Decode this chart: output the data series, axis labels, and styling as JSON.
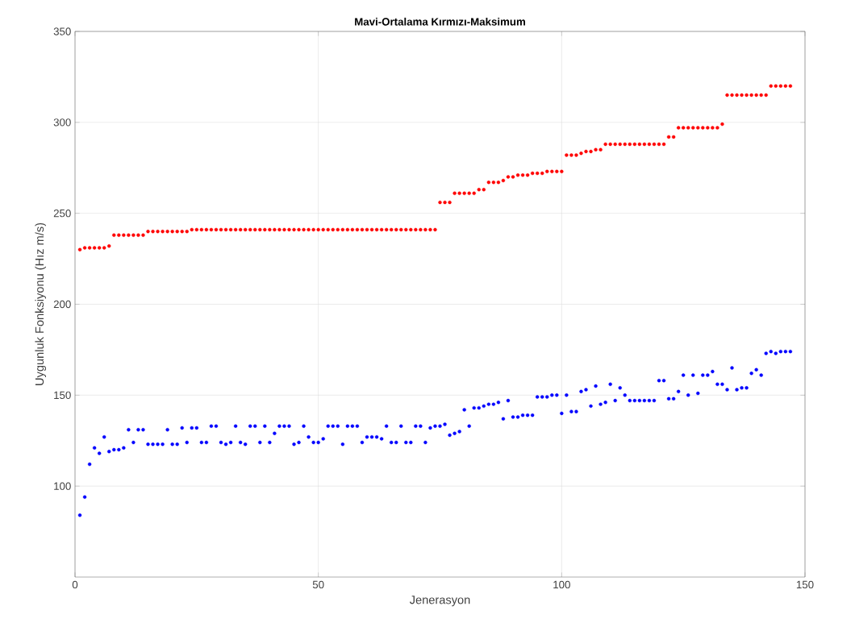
{
  "chart_data": {
    "type": "scatter",
    "title": "Mavi-Ortalama  Kırmızı-Maksimum",
    "xlabel": "Jenerasyon",
    "ylabel": "Uygunluk Fonksiyonu (Hız m/s)",
    "x": [
      1,
      2,
      3,
      4,
      5,
      6,
      7,
      8,
      9,
      10,
      11,
      12,
      13,
      14,
      15,
      16,
      17,
      18,
      19,
      20,
      21,
      22,
      23,
      24,
      25,
      26,
      27,
      28,
      29,
      30,
      31,
      32,
      33,
      34,
      35,
      36,
      37,
      38,
      39,
      40,
      41,
      42,
      43,
      44,
      45,
      46,
      47,
      48,
      49,
      50,
      51,
      52,
      53,
      54,
      55,
      56,
      57,
      58,
      59,
      60,
      61,
      62,
      63,
      64,
      65,
      66,
      67,
      68,
      69,
      70,
      71,
      72,
      73,
      74,
      75,
      76,
      77,
      78,
      79,
      80,
      81,
      82,
      83,
      84,
      85,
      86,
      87,
      88,
      89,
      90,
      91,
      92,
      93,
      94,
      95,
      96,
      97,
      98,
      99,
      100,
      101,
      102,
      103,
      104,
      105,
      106,
      107,
      108,
      109,
      110,
      111,
      112,
      113,
      114,
      115,
      116,
      117,
      118,
      119,
      120,
      121,
      122,
      123,
      124,
      125,
      126,
      127,
      128,
      129,
      130,
      131,
      132,
      133,
      134,
      135,
      136,
      137,
      138,
      139,
      140,
      141,
      142,
      143,
      144,
      145,
      146,
      147
    ],
    "series": [
      {
        "color": "#0000ff",
        "values": [
          84,
          94,
          112,
          121,
          118,
          127,
          119,
          120,
          120,
          121,
          131,
          124,
          131,
          131,
          123,
          123,
          123,
          123,
          131,
          123,
          123,
          132,
          124,
          132,
          132,
          124,
          124,
          133,
          133,
          124,
          123,
          124,
          133,
          124,
          123,
          133,
          133,
          124,
          133,
          124,
          129,
          133,
          133,
          133,
          123,
          124,
          133,
          127,
          124,
          124,
          126,
          133,
          133,
          133,
          123,
          133,
          133,
          133,
          124,
          127,
          127,
          127,
          126,
          133,
          124,
          124,
          133,
          124,
          124,
          133,
          133,
          124,
          132,
          133,
          133,
          134,
          128,
          129,
          130,
          142,
          133,
          143,
          143,
          144,
          145,
          145,
          146,
          137,
          147,
          138,
          138,
          139,
          139,
          139,
          149,
          149,
          149,
          150,
          150,
          140,
          150,
          141,
          141,
          152,
          153,
          144,
          155,
          145,
          146,
          156,
          147,
          154,
          150,
          147,
          147,
          147,
          147,
          147,
          147,
          158,
          158,
          148,
          148,
          152,
          161,
          150,
          161,
          151,
          161,
          161,
          163,
          156,
          156,
          153,
          165,
          153,
          154,
          154,
          162,
          164,
          161,
          173,
          174,
          173,
          174,
          174,
          174
        ]
      },
      {
        "color": "#ff0000",
        "values": [
          230,
          231,
          231,
          231,
          231,
          231,
          232,
          238,
          238,
          238,
          238,
          238,
          238,
          238,
          240,
          240,
          240,
          240,
          240,
          240,
          240,
          240,
          240,
          241,
          241,
          241,
          241,
          241,
          241,
          241,
          241,
          241,
          241,
          241,
          241,
          241,
          241,
          241,
          241,
          241,
          241,
          241,
          241,
          241,
          241,
          241,
          241,
          241,
          241,
          241,
          241,
          241,
          241,
          241,
          241,
          241,
          241,
          241,
          241,
          241,
          241,
          241,
          241,
          241,
          241,
          241,
          241,
          241,
          241,
          241,
          241,
          241,
          241,
          241,
          256,
          256,
          256,
          261,
          261,
          261,
          261,
          261,
          263,
          263,
          267,
          267,
          267,
          268,
          270,
          270,
          271,
          271,
          271,
          272,
          272,
          272,
          273,
          273,
          273,
          273,
          282,
          282,
          282,
          283,
          284,
          284,
          285,
          285,
          288,
          288,
          288,
          288,
          288,
          288,
          288,
          288,
          288,
          288,
          288,
          288,
          288,
          292,
          292,
          297,
          297,
          297,
          297,
          297,
          297,
          297,
          297,
          297,
          299,
          315,
          315,
          315,
          315,
          315,
          315,
          315,
          315,
          315,
          320,
          320,
          320,
          320,
          320
        ]
      }
    ],
    "xlim": [
      0,
      150
    ],
    "xticks": [
      0,
      50,
      100,
      150
    ],
    "ylim": [
      50,
      350
    ],
    "yticks": [
      100,
      150,
      200,
      250,
      300,
      350
    ],
    "grid": true,
    "marker": "circle"
  }
}
